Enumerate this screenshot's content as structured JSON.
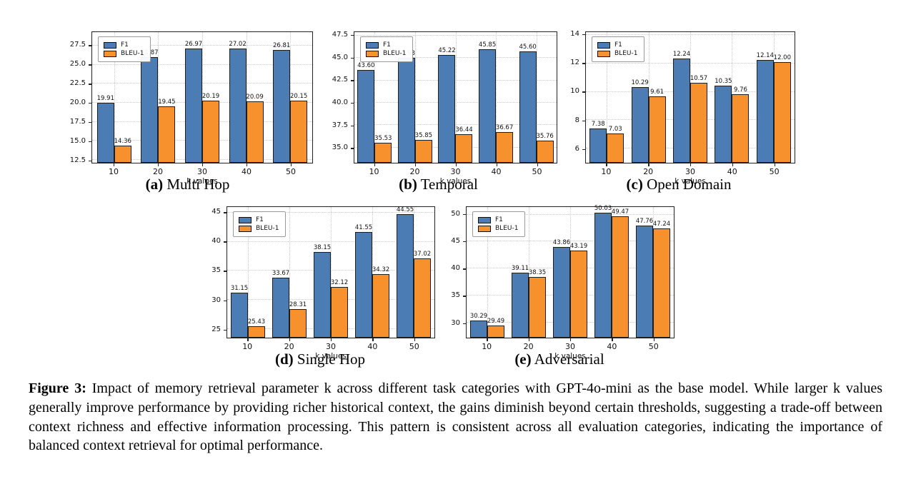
{
  "figure": {
    "caption_label": "Figure 3:",
    "caption_text": " Impact of memory retrieval parameter k across different task categories with GPT-4o-mini as the base model. While larger k values generally improve performance by providing richer historical context, the gains diminish beyond certain thresholds, suggesting a trade-off between context richness and effective information processing. This pattern is consistent across all evaluation categories, indicating the importance of balanced context retrieval for optimal performance."
  },
  "colors": {
    "f1": "#4C7CB4",
    "bleu1": "#F6912E",
    "bar_edge": "#1d1d1d",
    "grid": "#c9c9c9",
    "spine": "#222222"
  },
  "legend_labels": [
    "F1",
    "BLEU-1"
  ],
  "chart_data": [
    {
      "id": "a",
      "type": "bar",
      "label": "(a)",
      "title": "Multi Hop",
      "xlabel": "k values",
      "categories": [
        "10",
        "20",
        "30",
        "40",
        "50"
      ],
      "series": [
        {
          "name": "F1",
          "values": [
            19.91,
            25.87,
            26.97,
            27.02,
            26.81
          ]
        },
        {
          "name": "BLEU-1",
          "values": [
            14.36,
            19.45,
            20.19,
            20.09,
            20.15
          ]
        }
      ],
      "ytick_labels": [
        "12.5",
        "15.0",
        "17.5",
        "20.0",
        "22.5",
        "25.0",
        "27.5"
      ],
      "ytick_values": [
        12.5,
        15.0,
        17.5,
        20.0,
        22.5,
        25.0,
        27.5
      ],
      "ylim": [
        12.1,
        29.3
      ],
      "legend_position": "upper left",
      "grid": true
    },
    {
      "id": "b",
      "type": "bar",
      "label": "(b)",
      "title": "Temporal",
      "xlabel": "k values",
      "categories": [
        "10",
        "20",
        "30",
        "40",
        "50"
      ],
      "series": [
        {
          "name": "F1",
          "values": [
            43.6,
            44.93,
            45.22,
            45.85,
            45.6
          ]
        },
        {
          "name": "BLEU-1",
          "values": [
            35.53,
            35.85,
            36.44,
            36.67,
            35.76
          ]
        }
      ],
      "ytick_labels": [
        "35.0",
        "37.5",
        "40.0",
        "42.5",
        "45.0",
        "47.5"
      ],
      "ytick_values": [
        35.0,
        37.5,
        40.0,
        42.5,
        45.0,
        47.5
      ],
      "ylim": [
        33.3,
        47.9
      ],
      "legend_position": "upper left",
      "grid": true
    },
    {
      "id": "c",
      "type": "bar",
      "label": "(c)",
      "title": "Open Domain",
      "xlabel": "k values",
      "categories": [
        "10",
        "20",
        "30",
        "40",
        "50"
      ],
      "series": [
        {
          "name": "F1",
          "values": [
            7.38,
            10.29,
            12.24,
            10.35,
            12.14
          ]
        },
        {
          "name": "BLEU-1",
          "values": [
            7.03,
            9.61,
            10.57,
            9.76,
            12.0
          ]
        }
      ],
      "ytick_labels": [
        "6",
        "8",
        "10",
        "12",
        "14"
      ],
      "ytick_values": [
        6,
        8,
        10,
        12,
        14
      ],
      "ylim": [
        5.0,
        14.2
      ],
      "legend_position": "upper left",
      "grid": true
    },
    {
      "id": "d",
      "type": "bar",
      "label": "(d)",
      "title": "Single Hop",
      "xlabel": "k values",
      "categories": [
        "10",
        "20",
        "30",
        "40",
        "50"
      ],
      "series": [
        {
          "name": "F1",
          "values": [
            31.15,
            33.67,
            38.15,
            41.55,
            44.55
          ]
        },
        {
          "name": "BLEU-1",
          "values": [
            25.43,
            28.31,
            32.12,
            34.32,
            37.02
          ]
        }
      ],
      "ytick_labels": [
        "25",
        "30",
        "35",
        "40",
        "45"
      ],
      "ytick_values": [
        25,
        30,
        35,
        40,
        45
      ],
      "ylim": [
        23.5,
        46.0
      ],
      "legend_position": "upper left",
      "grid": true
    },
    {
      "id": "e",
      "type": "bar",
      "label": "(e)",
      "title": "Adversarial",
      "xlabel": "k values",
      "categories": [
        "10",
        "20",
        "30",
        "40",
        "50"
      ],
      "series": [
        {
          "name": "F1",
          "values": [
            30.29,
            39.11,
            43.86,
            50.03,
            47.76
          ]
        },
        {
          "name": "BLEU-1",
          "values": [
            29.49,
            38.35,
            43.19,
            49.47,
            47.24
          ]
        }
      ],
      "ytick_labels": [
        "30",
        "35",
        "40",
        "45",
        "50"
      ],
      "ytick_values": [
        30,
        35,
        40,
        45,
        50
      ],
      "ylim": [
        27.2,
        51.4
      ],
      "legend_position": "upper left",
      "grid": true
    }
  ]
}
